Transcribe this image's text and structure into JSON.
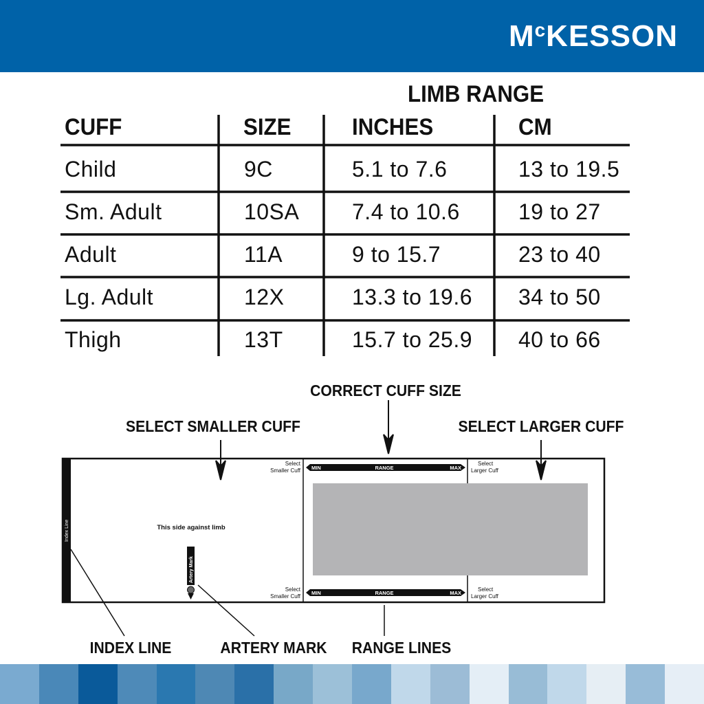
{
  "brand": {
    "name": "MCKESSON",
    "logo_prefix": "M",
    "logo_small": "c",
    "logo_rest": "KESSON",
    "color": "#0062a8"
  },
  "table": {
    "group_header": "LIMB RANGE",
    "columns": [
      "CUFF",
      "SIZE",
      "INCHES",
      "CM"
    ],
    "rows": [
      [
        "Child",
        "9C",
        "5.1 to 7.6",
        "13 to 19.5"
      ],
      [
        "Sm. Adult",
        "10SA",
        "7.4 to 10.6",
        "19 to 27"
      ],
      [
        "Adult",
        "11A",
        "9 to 15.7",
        "23 to 40"
      ],
      [
        "Lg. Adult",
        "12X",
        "13.3 to 19.6",
        "34 to 50"
      ],
      [
        "Thigh",
        "13T",
        "15.7 to 25.9",
        "40 to 66"
      ]
    ]
  },
  "diagram": {
    "callouts": {
      "correct": "CORRECT CUFF SIZE",
      "smaller": "SELECT SMALLER CUFF",
      "larger": "SELECT LARGER CUFF",
      "index": "INDEX LINE",
      "artery": "ARTERY MARK",
      "range": "RANGE LINES"
    },
    "cuff": {
      "index_line": "Index Line",
      "limb_side": "This side against limb",
      "artery_mark": "Artery Mark",
      "select": "Select",
      "smaller_cuff": "Smaller Cuff",
      "larger_cuff": "Larger Cuff",
      "min": "MIN",
      "range": "RANGE",
      "max": "MAX"
    },
    "fill_color": "#b4b4b6"
  },
  "strip_colors": [
    "#7aaad0",
    "#4a88b8",
    "#0a5a9a",
    "#4e8ab8",
    "#2a78b0",
    "#4e88b4",
    "#2a70a8",
    "#78a8c8",
    "#9cc0d8",
    "#78a8cc",
    "#c0d8ea",
    "#9cbcd6",
    "#e4eef6",
    "#98bcd6",
    "#c0d8ea",
    "#e6eef4",
    "#98bcd8",
    "#e6eef6"
  ]
}
